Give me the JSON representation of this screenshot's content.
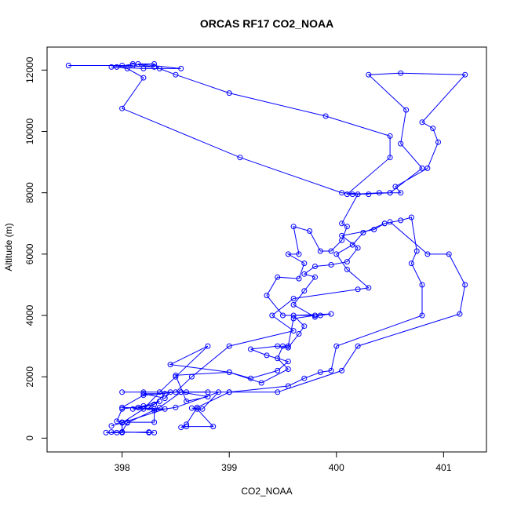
{
  "chart_data": {
    "type": "line",
    "title": "ORCAS RF17 CO2_NOAA",
    "xlabel": "CO2_NOAA",
    "ylabel": "Altitude (m)",
    "xlim": [
      397.3,
      401.4
    ],
    "ylim": [
      -450,
      12750
    ],
    "x_ticks": [
      398,
      399,
      400,
      401
    ],
    "y_ticks": [
      0,
      2000,
      4000,
      6000,
      8000,
      10000,
      12000
    ],
    "grid": false,
    "legend": "none",
    "marker": "open-circle",
    "color": "#0000ff",
    "series": [
      {
        "points": [
          [
            398.3,
            180
          ],
          [
            397.9,
            200
          ],
          [
            397.95,
            180
          ],
          [
            398.0,
            200
          ],
          [
            398.05,
            520
          ],
          [
            398.3,
            520
          ],
          [
            398.3,
            950
          ],
          [
            398.1,
            950
          ],
          [
            398.3,
            1100
          ],
          [
            398.4,
            1450
          ],
          [
            398.2,
            1450
          ],
          [
            398.4,
            1300
          ],
          [
            398.45,
            1500
          ],
          [
            398.6,
            1500
          ],
          [
            398.8,
            1500
          ],
          [
            398.2,
            1500
          ],
          [
            398.0,
            1500
          ],
          [
            398.55,
            1500
          ],
          [
            398.8,
            1350
          ],
          [
            398.6,
            1200
          ],
          [
            398.5,
            2050
          ],
          [
            399.0,
            2150
          ],
          [
            399.2,
            1950
          ],
          [
            399.45,
            2200
          ],
          [
            399.55,
            2500
          ],
          [
            399.35,
            2700
          ],
          [
            399.2,
            2900
          ],
          [
            399.45,
            3000
          ],
          [
            399.55,
            2950
          ],
          [
            399.65,
            3400
          ],
          [
            399.7,
            3650
          ],
          [
            399.6,
            4000
          ],
          [
            399.95,
            4050
          ],
          [
            399.85,
            4000
          ],
          [
            399.8,
            3950
          ],
          [
            399.6,
            4350
          ],
          [
            399.7,
            4800
          ],
          [
            399.8,
            5250
          ],
          [
            399.7,
            5350
          ],
          [
            399.8,
            5600
          ],
          [
            399.95,
            5650
          ],
          [
            400.1,
            5750
          ],
          [
            400.2,
            6200
          ],
          [
            400.05,
            6600
          ],
          [
            400.35,
            6800
          ],
          [
            400.45,
            7000
          ],
          [
            400.6,
            7100
          ],
          [
            400.7,
            7200
          ],
          [
            400.75,
            6100
          ],
          [
            400.7,
            5700
          ],
          [
            400.8,
            5000
          ],
          [
            400.8,
            4000
          ],
          [
            400.0,
            3000
          ],
          [
            399.95,
            2200
          ],
          [
            399.85,
            2150
          ],
          [
            399.7,
            1950
          ],
          [
            399.55,
            1700
          ],
          [
            399.0,
            1500
          ],
          [
            398.7,
            1000
          ],
          [
            398.6,
            450
          ],
          [
            398.55,
            350
          ],
          [
            398.6,
            380
          ],
          [
            398.85,
            380
          ],
          [
            398.7,
            950
          ],
          [
            398.65,
            980
          ],
          [
            398.75,
            950
          ],
          [
            398.9,
            1500
          ],
          [
            398.5,
            1000
          ],
          [
            398.3,
            900
          ],
          [
            398.25,
            1000
          ],
          [
            398.35,
            1200
          ],
          [
            398.15,
            1000
          ],
          [
            398.2,
            1050
          ],
          [
            398.0,
            950
          ],
          [
            397.95,
            550
          ],
          [
            398.0,
            520
          ],
          [
            398.0,
            180
          ],
          [
            397.85,
            180
          ],
          [
            398.25,
            200
          ]
        ]
      },
      {
        "points": [
          [
            397.9,
            400
          ],
          [
            398.0,
            500
          ],
          [
            398.2,
            950
          ],
          [
            398.35,
            1500
          ],
          [
            398.5,
            2000
          ],
          [
            398.8,
            3000
          ],
          [
            398.45,
            2400
          ],
          [
            399.0,
            2150
          ],
          [
            399.3,
            1800
          ],
          [
            399.55,
            2250
          ],
          [
            399.45,
            2600
          ],
          [
            399.5,
            3000
          ],
          [
            399.55,
            3000
          ],
          [
            399.6,
            3900
          ],
          [
            399.8,
            4000
          ],
          [
            399.5,
            4000
          ],
          [
            399.35,
            4650
          ],
          [
            399.45,
            5250
          ],
          [
            399.65,
            5200
          ],
          [
            399.7,
            5700
          ],
          [
            399.55,
            6000
          ],
          [
            399.65,
            6000
          ],
          [
            399.6,
            6900
          ],
          [
            399.75,
            6750
          ],
          [
            399.85,
            6100
          ],
          [
            399.95,
            6100
          ],
          [
            400.05,
            6450
          ],
          [
            400.1,
            6900
          ],
          [
            400.05,
            7000
          ],
          [
            400.2,
            7950
          ],
          [
            400.5,
            8000
          ],
          [
            400.6,
            8000
          ],
          [
            400.55,
            8200
          ],
          [
            400.85,
            8800
          ],
          [
            400.95,
            9650
          ],
          [
            400.9,
            10100
          ],
          [
            400.8,
            10300
          ],
          [
            401.2,
            11850
          ],
          [
            400.6,
            11900
          ],
          [
            400.3,
            11850
          ],
          [
            400.65,
            10700
          ],
          [
            400.6,
            9600
          ],
          [
            400.8,
            8800
          ],
          [
            400.5,
            8000
          ],
          [
            400.4,
            8000
          ],
          [
            400.15,
            7950
          ],
          [
            400.1,
            7950
          ],
          [
            400.5,
            9150
          ],
          [
            400.5,
            9850
          ],
          [
            399.9,
            10500
          ],
          [
            399.0,
            11250
          ],
          [
            398.5,
            11850
          ],
          [
            398.35,
            12050
          ],
          [
            398.3,
            12200
          ],
          [
            398.15,
            12200
          ],
          [
            398.55,
            12050
          ],
          [
            398.2,
            12050
          ],
          [
            397.9,
            12100
          ],
          [
            398.1,
            12150
          ],
          [
            397.5,
            12150
          ],
          [
            398.0,
            12150
          ],
          [
            398.3,
            12100
          ],
          [
            398.1,
            12200
          ],
          [
            397.95,
            12100
          ],
          [
            398.05,
            12050
          ],
          [
            398.2,
            11750
          ],
          [
            398.0,
            10750
          ],
          [
            399.1,
            9150
          ],
          [
            400.05,
            8000
          ],
          [
            400.3,
            7950
          ]
        ]
      },
      {
        "points": [
          [
            400.45,
            7000
          ],
          [
            400.25,
            6700
          ],
          [
            400.15,
            6300
          ],
          [
            400.0,
            6000
          ],
          [
            400.1,
            5500
          ],
          [
            400.3,
            4900
          ],
          [
            400.2,
            4850
          ],
          [
            399.6,
            4550
          ],
          [
            399.4,
            4000
          ],
          [
            399.6,
            3500
          ],
          [
            399.0,
            3000
          ],
          [
            398.65,
            2000
          ],
          [
            398.5,
            1500
          ],
          [
            398.2,
            1400
          ],
          [
            398.0,
            1000
          ],
          [
            398.4,
            950
          ],
          [
            398.0,
            500
          ],
          [
            398.0,
            200
          ],
          [
            398.25,
            180
          ]
        ]
      },
      {
        "points": [
          [
            400.5,
            7050
          ],
          [
            400.85,
            6000
          ],
          [
            401.05,
            6000
          ],
          [
            401.2,
            5000
          ],
          [
            401.15,
            4050
          ],
          [
            400.2,
            3000
          ],
          [
            400.05,
            2200
          ],
          [
            399.45,
            1500
          ],
          [
            399.0,
            1500
          ],
          [
            398.55,
            1500
          ],
          [
            398.35,
            1000
          ],
          [
            398.05,
            500
          ]
        ]
      }
    ]
  }
}
